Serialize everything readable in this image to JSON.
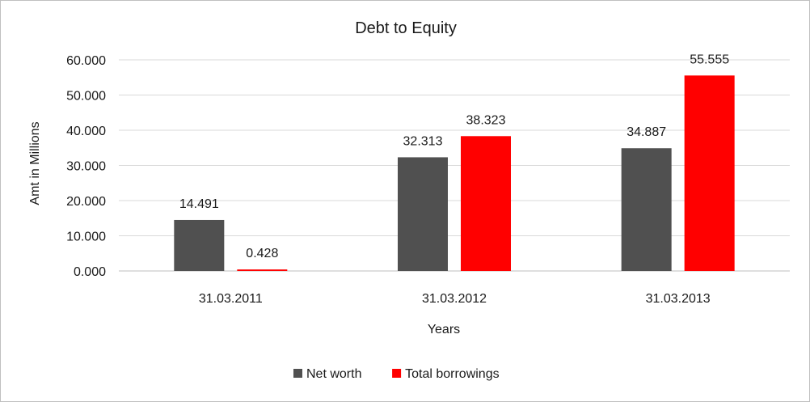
{
  "chart_data": {
    "type": "bar",
    "title": "Debt to Equity",
    "xlabel": "Years",
    "ylabel": "Amt in Millions",
    "categories": [
      "31.03.2011",
      "31.03.2012",
      "31.03.2013"
    ],
    "series": [
      {
        "name": "Net worth",
        "color": "#505050",
        "values": [
          14.491,
          32.313,
          34.887
        ],
        "labels": [
          "14.491",
          "32.313",
          "34.887"
        ]
      },
      {
        "name": "Total borrowings",
        "color": "#ff0000",
        "values": [
          0.428,
          38.323,
          55.555
        ],
        "labels": [
          "0.428",
          "38.323",
          "55.555"
        ]
      }
    ],
    "ylim": [
      0,
      60
    ],
    "yticks": [
      0,
      10,
      20,
      30,
      40,
      50,
      60
    ],
    "ytick_labels": [
      "0.000",
      "10.000",
      "20.000",
      "30.000",
      "40.000",
      "50.000",
      "60.000"
    ],
    "grid": true,
    "legend_position": "bottom"
  }
}
